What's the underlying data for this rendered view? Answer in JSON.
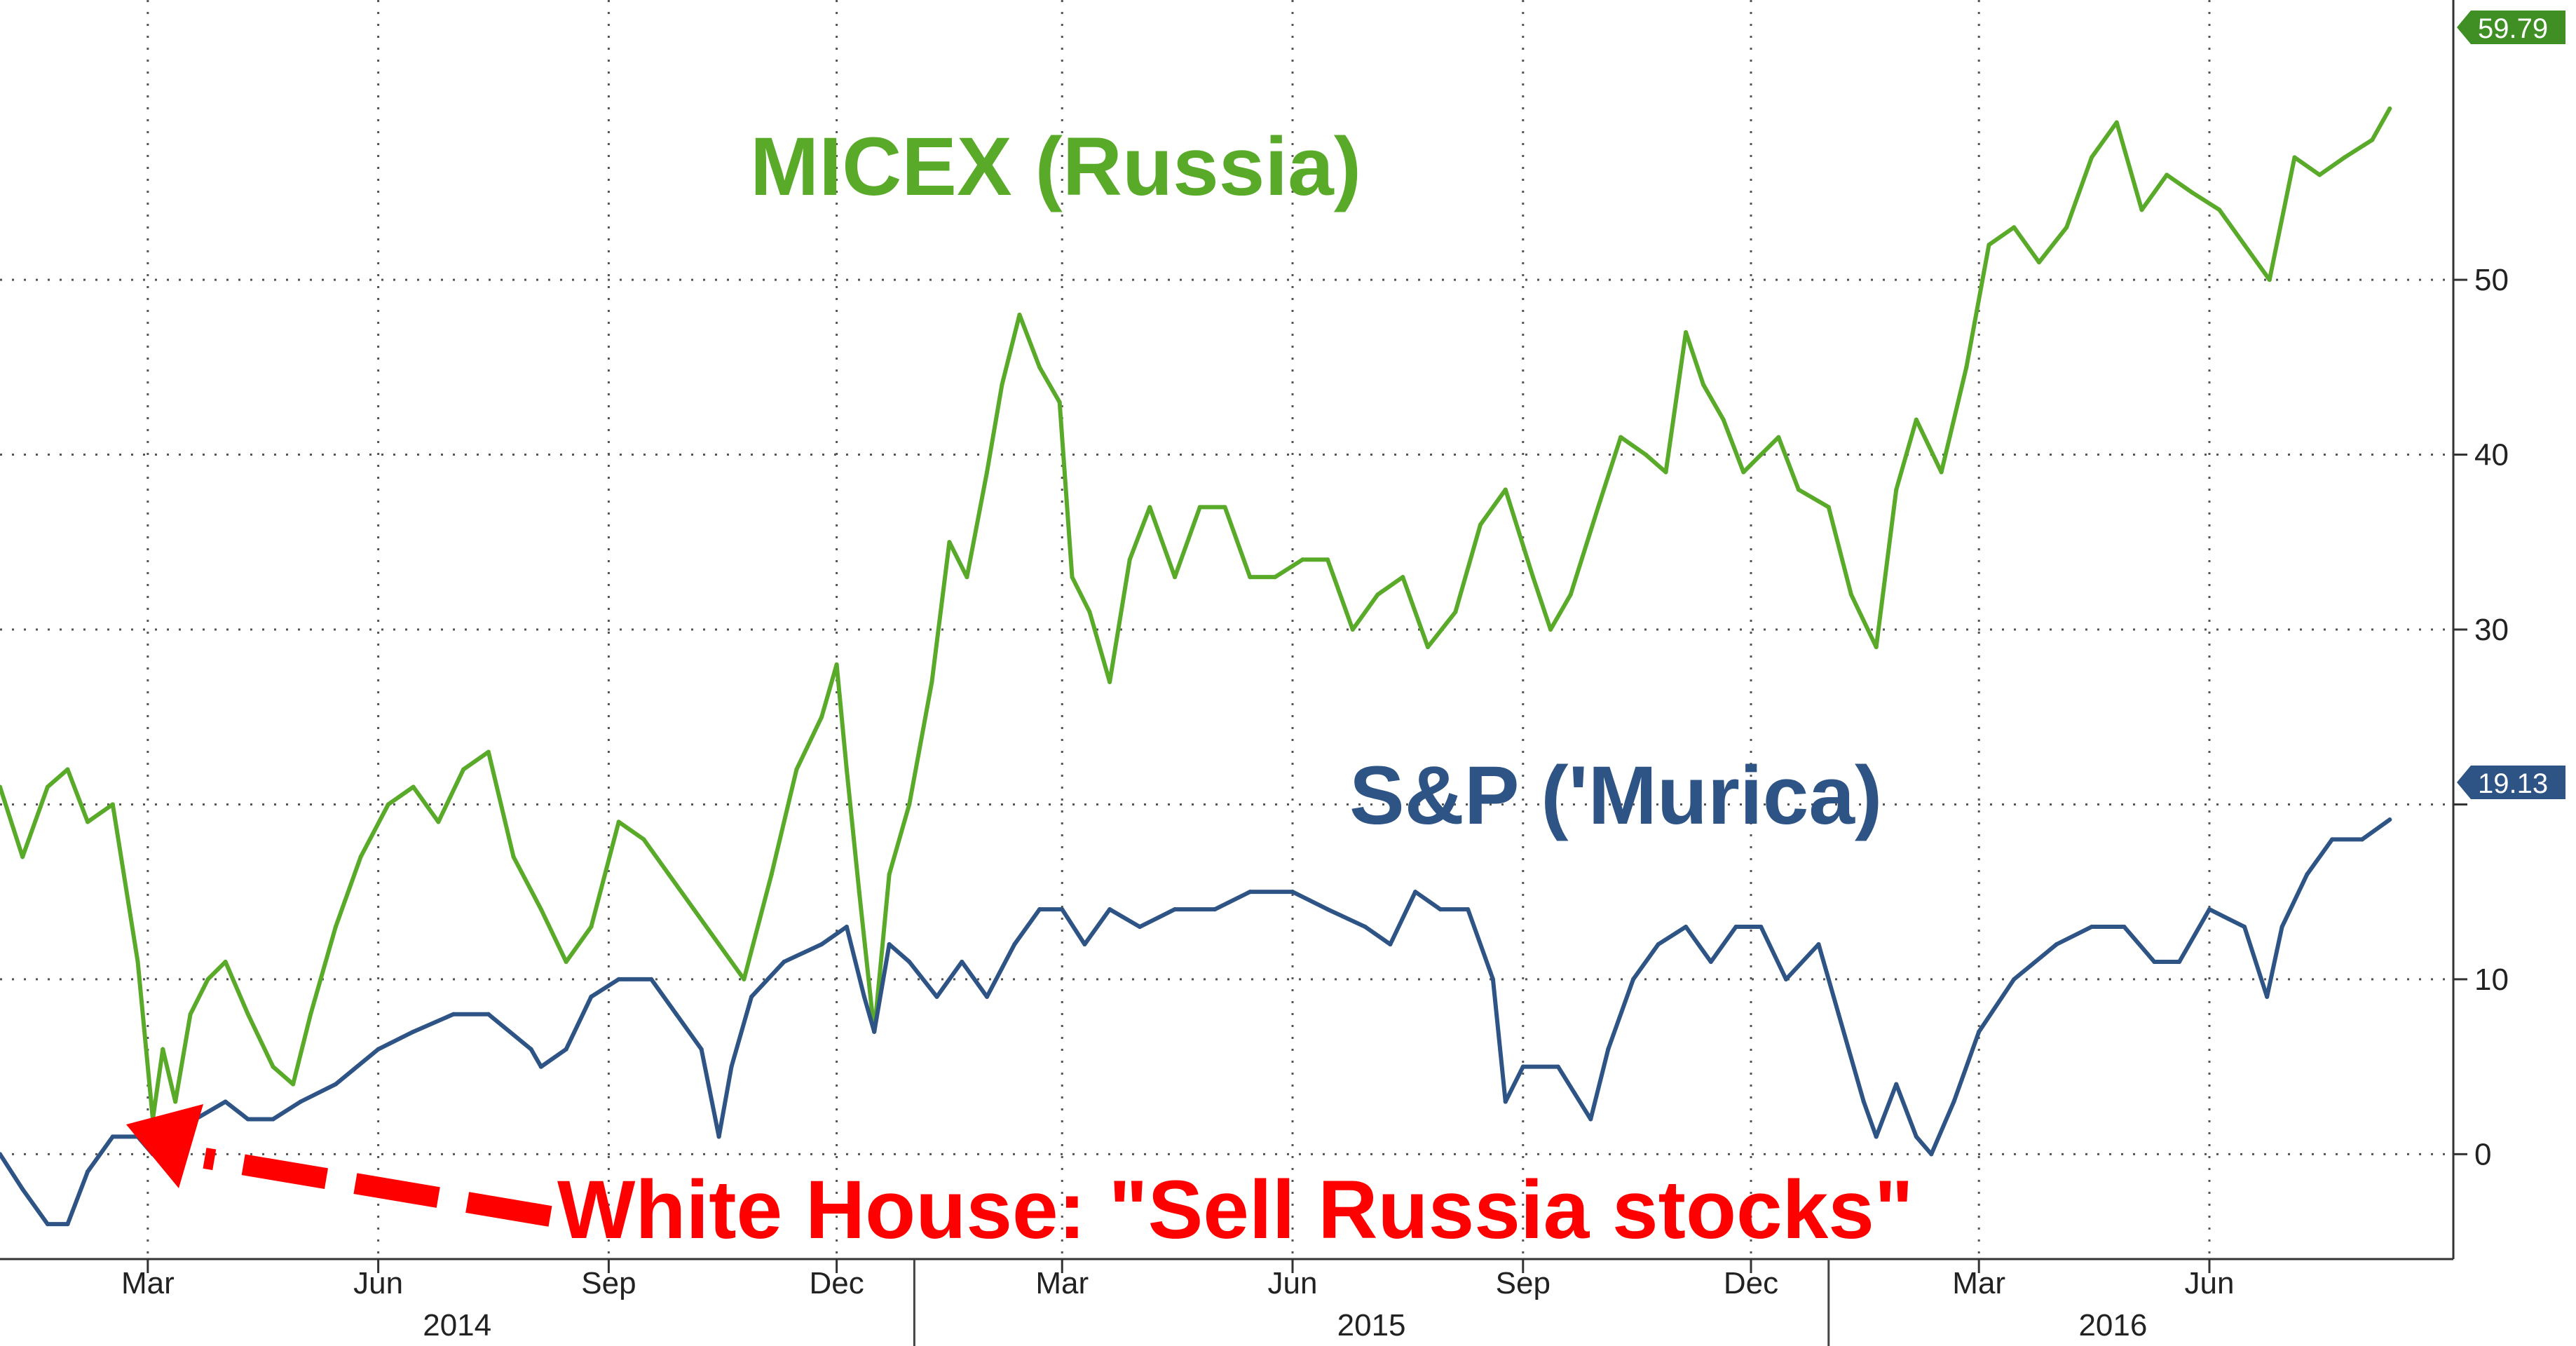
{
  "chart_data": {
    "type": "line",
    "x_range": [
      "2014-01-01",
      "2016-08-15"
    ],
    "ylim": [
      -6,
      66
    ],
    "grid": true,
    "y_ticks": [
      0,
      10,
      20,
      30,
      40,
      50
    ],
    "y_tick_labels": [
      "0",
      "10",
      "",
      "30",
      "40",
      "50"
    ],
    "x_month_ticks": [
      {
        "date": "2014-03-01",
        "label": "Mar"
      },
      {
        "date": "2014-06-01",
        "label": "Jun"
      },
      {
        "date": "2014-09-01",
        "label": "Sep"
      },
      {
        "date": "2014-12-01",
        "label": "Dec"
      },
      {
        "date": "2015-03-01",
        "label": "Mar"
      },
      {
        "date": "2015-06-01",
        "label": "Jun"
      },
      {
        "date": "2015-09-01",
        "label": "Sep"
      },
      {
        "date": "2015-12-01",
        "label": "Dec"
      },
      {
        "date": "2016-03-01",
        "label": "Mar"
      },
      {
        "date": "2016-06-01",
        "label": "Jun"
      }
    ],
    "x_year_labels": [
      {
        "label": "2014",
        "start": "2014-01-01",
        "end": "2015-01-01"
      },
      {
        "label": "2015",
        "start": "2015-01-01",
        "end": "2016-01-01"
      },
      {
        "label": "2016",
        "start": "2016-01-01",
        "end": "2016-08-15"
      }
    ],
    "year_dividers": [
      "2015-01-01",
      "2016-01-01"
    ],
    "series": [
      {
        "name": "MICEX (Russia)",
        "color": "#5aaa2a",
        "last_value": "59.79",
        "points": [
          [
            "2014-01-01",
            21
          ],
          [
            "2014-01-10",
            17
          ],
          [
            "2014-01-20",
            21
          ],
          [
            "2014-01-28",
            22
          ],
          [
            "2014-02-05",
            19
          ],
          [
            "2014-02-15",
            20
          ],
          [
            "2014-02-25",
            11
          ],
          [
            "2014-03-03",
            2
          ],
          [
            "2014-03-07",
            6
          ],
          [
            "2014-03-12",
            3
          ],
          [
            "2014-03-18",
            8
          ],
          [
            "2014-03-25",
            10
          ],
          [
            "2014-04-01",
            11
          ],
          [
            "2014-04-10",
            8
          ],
          [
            "2014-04-20",
            5
          ],
          [
            "2014-04-28",
            4
          ],
          [
            "2014-05-05",
            8
          ],
          [
            "2014-05-15",
            13
          ],
          [
            "2014-05-25",
            17
          ],
          [
            "2014-06-05",
            20
          ],
          [
            "2014-06-15",
            21
          ],
          [
            "2014-06-25",
            19
          ],
          [
            "2014-07-05",
            22
          ],
          [
            "2014-07-15",
            23
          ],
          [
            "2014-07-25",
            17
          ],
          [
            "2014-08-05",
            14
          ],
          [
            "2014-08-15",
            11
          ],
          [
            "2014-08-25",
            13
          ],
          [
            "2014-09-05",
            19
          ],
          [
            "2014-09-15",
            18
          ],
          [
            "2014-09-25",
            16
          ],
          [
            "2014-10-05",
            14
          ],
          [
            "2014-10-15",
            12
          ],
          [
            "2014-10-25",
            10
          ],
          [
            "2014-11-05",
            16
          ],
          [
            "2014-11-15",
            22
          ],
          [
            "2014-11-25",
            25
          ],
          [
            "2014-12-01",
            28
          ],
          [
            "2014-12-05",
            22
          ],
          [
            "2014-12-10",
            15
          ],
          [
            "2014-12-16",
            7
          ],
          [
            "2014-12-22",
            16
          ],
          [
            "2014-12-30",
            20
          ],
          [
            "2015-01-08",
            27
          ],
          [
            "2015-01-15",
            35
          ],
          [
            "2015-01-22",
            33
          ],
          [
            "2015-01-30",
            39
          ],
          [
            "2015-02-05",
            44
          ],
          [
            "2015-02-12",
            48
          ],
          [
            "2015-02-20",
            45
          ],
          [
            "2015-02-28",
            43
          ],
          [
            "2015-03-05",
            33
          ],
          [
            "2015-03-12",
            31
          ],
          [
            "2015-03-20",
            27
          ],
          [
            "2015-03-28",
            34
          ],
          [
            "2015-04-05",
            37
          ],
          [
            "2015-04-15",
            33
          ],
          [
            "2015-04-25",
            37
          ],
          [
            "2015-05-05",
            37
          ],
          [
            "2015-05-15",
            33
          ],
          [
            "2015-05-25",
            33
          ],
          [
            "2015-06-05",
            34
          ],
          [
            "2015-06-15",
            34
          ],
          [
            "2015-06-25",
            30
          ],
          [
            "2015-07-05",
            32
          ],
          [
            "2015-07-15",
            33
          ],
          [
            "2015-07-25",
            29
          ],
          [
            "2015-08-05",
            31
          ],
          [
            "2015-08-15",
            36
          ],
          [
            "2015-08-25",
            38
          ],
          [
            "2015-09-05",
            33
          ],
          [
            "2015-09-12",
            30
          ],
          [
            "2015-09-20",
            32
          ],
          [
            "2015-10-01",
            37
          ],
          [
            "2015-10-10",
            41
          ],
          [
            "2015-10-20",
            40
          ],
          [
            "2015-10-28",
            39
          ],
          [
            "2015-11-05",
            47
          ],
          [
            "2015-11-12",
            44
          ],
          [
            "2015-11-20",
            42
          ],
          [
            "2015-11-28",
            39
          ],
          [
            "2015-12-05",
            40
          ],
          [
            "2015-12-12",
            41
          ],
          [
            "2015-12-20",
            38
          ],
          [
            "2016-01-01",
            37
          ],
          [
            "2016-01-10",
            32
          ],
          [
            "2016-01-20",
            29
          ],
          [
            "2016-01-28",
            38
          ],
          [
            "2016-02-05",
            42
          ],
          [
            "2016-02-15",
            39
          ],
          [
            "2016-02-25",
            45
          ],
          [
            "2016-03-05",
            52
          ],
          [
            "2016-03-15",
            53
          ],
          [
            "2016-03-25",
            51
          ],
          [
            "2016-04-05",
            53
          ],
          [
            "2016-04-15",
            57
          ],
          [
            "2016-04-25",
            59
          ],
          [
            "2016-05-05",
            54
          ],
          [
            "2016-05-15",
            56
          ],
          [
            "2016-05-25",
            55
          ],
          [
            "2016-06-05",
            54
          ],
          [
            "2016-06-15",
            52
          ],
          [
            "2016-06-25",
            50
          ],
          [
            "2016-07-05",
            57
          ],
          [
            "2016-07-15",
            56
          ],
          [
            "2016-07-25",
            57
          ],
          [
            "2016-08-05",
            58
          ],
          [
            "2016-08-12",
            59.79
          ]
        ]
      },
      {
        "name": "S&P ('Murica)",
        "color": "#2e5486",
        "last_value": "19.13",
        "points": [
          [
            "2014-01-01",
            0
          ],
          [
            "2014-01-10",
            -2
          ],
          [
            "2014-01-20",
            -4
          ],
          [
            "2014-01-28",
            -4
          ],
          [
            "2014-02-05",
            -1
          ],
          [
            "2014-02-15",
            1
          ],
          [
            "2014-02-25",
            1
          ],
          [
            "2014-03-03",
            0
          ],
          [
            "2014-03-10",
            1
          ],
          [
            "2014-03-20",
            2
          ],
          [
            "2014-04-01",
            3
          ],
          [
            "2014-04-10",
            2
          ],
          [
            "2014-04-20",
            2
          ],
          [
            "2014-05-01",
            3
          ],
          [
            "2014-05-15",
            4
          ],
          [
            "2014-06-01",
            6
          ],
          [
            "2014-06-15",
            7
          ],
          [
            "2014-07-01",
            8
          ],
          [
            "2014-07-15",
            8
          ],
          [
            "2014-08-01",
            6
          ],
          [
            "2014-08-05",
            5
          ],
          [
            "2014-08-15",
            6
          ],
          [
            "2014-08-25",
            9
          ],
          [
            "2014-09-05",
            10
          ],
          [
            "2014-09-18",
            10
          ],
          [
            "2014-09-28",
            8
          ],
          [
            "2014-10-08",
            6
          ],
          [
            "2014-10-15",
            1
          ],
          [
            "2014-10-20",
            5
          ],
          [
            "2014-10-28",
            9
          ],
          [
            "2014-11-10",
            11
          ],
          [
            "2014-11-25",
            12
          ],
          [
            "2014-12-05",
            13
          ],
          [
            "2014-12-12",
            9
          ],
          [
            "2014-12-16",
            7
          ],
          [
            "2014-12-22",
            12
          ],
          [
            "2014-12-30",
            11
          ],
          [
            "2015-01-10",
            9
          ],
          [
            "2015-01-20",
            11
          ],
          [
            "2015-01-30",
            9
          ],
          [
            "2015-02-10",
            12
          ],
          [
            "2015-02-20",
            14
          ],
          [
            "2015-03-01",
            14
          ],
          [
            "2015-03-10",
            12
          ],
          [
            "2015-03-20",
            14
          ],
          [
            "2015-04-01",
            13
          ],
          [
            "2015-04-15",
            14
          ],
          [
            "2015-05-01",
            14
          ],
          [
            "2015-05-15",
            15
          ],
          [
            "2015-06-01",
            15
          ],
          [
            "2015-06-15",
            14
          ],
          [
            "2015-06-30",
            13
          ],
          [
            "2015-07-10",
            12
          ],
          [
            "2015-07-20",
            15
          ],
          [
            "2015-07-30",
            14
          ],
          [
            "2015-08-10",
            14
          ],
          [
            "2015-08-20",
            10
          ],
          [
            "2015-08-25",
            3
          ],
          [
            "2015-09-01",
            5
          ],
          [
            "2015-09-15",
            5
          ],
          [
            "2015-09-28",
            2
          ],
          [
            "2015-10-05",
            6
          ],
          [
            "2015-10-15",
            10
          ],
          [
            "2015-10-25",
            12
          ],
          [
            "2015-11-05",
            13
          ],
          [
            "2015-11-15",
            11
          ],
          [
            "2015-11-25",
            13
          ],
          [
            "2015-12-05",
            13
          ],
          [
            "2015-12-15",
            10
          ],
          [
            "2015-12-28",
            12
          ],
          [
            "2016-01-05",
            8
          ],
          [
            "2016-01-15",
            3
          ],
          [
            "2016-01-20",
            1
          ],
          [
            "2016-01-28",
            4
          ],
          [
            "2016-02-05",
            1
          ],
          [
            "2016-02-11",
            0
          ],
          [
            "2016-02-20",
            3
          ],
          [
            "2016-03-01",
            7
          ],
          [
            "2016-03-15",
            10
          ],
          [
            "2016-04-01",
            12
          ],
          [
            "2016-04-15",
            13
          ],
          [
            "2016-04-28",
            13
          ],
          [
            "2016-05-10",
            11
          ],
          [
            "2016-05-20",
            11
          ],
          [
            "2016-06-01",
            14
          ],
          [
            "2016-06-15",
            13
          ],
          [
            "2016-06-24",
            9
          ],
          [
            "2016-06-30",
            13
          ],
          [
            "2016-07-10",
            16
          ],
          [
            "2016-07-20",
            18
          ],
          [
            "2016-08-01",
            18
          ],
          [
            "2016-08-12",
            19.13
          ]
        ]
      }
    ],
    "annotations": [
      {
        "text": "MICEX (Russia)",
        "color": "#5aaa2a"
      },
      {
        "text": "S&P ('Murica)",
        "color": "#2e5486"
      },
      {
        "text": "White House: \"Sell Russia stocks\"",
        "color": "#ff0000",
        "arrow_to": [
          "2014-03-03",
          0
        ]
      }
    ]
  }
}
